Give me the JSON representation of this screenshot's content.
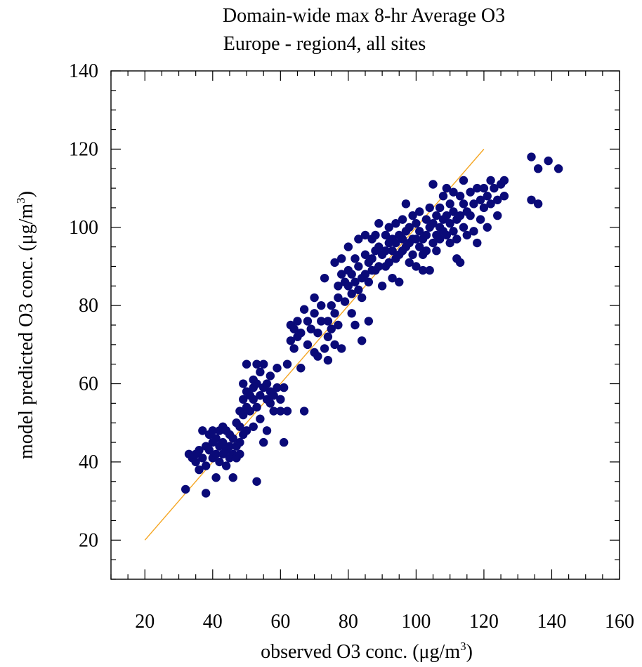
{
  "chart_data": {
    "type": "scatter",
    "title": "Domain-wide max 8-hr Average O3",
    "subtitle": "Europe - region4, all sites",
    "xlabel": "observed O3 conc. (μg/m³)",
    "xlabel_parts": {
      "main": "observed O3 conc. (μg/m",
      "sup": "3",
      "tail": ")"
    },
    "ylabel": "model predicted O3 conc. (μg/m³)",
    "ylabel_parts": {
      "main": "model predicted O3 conc. (μg/m",
      "sup": "3",
      "tail": ")"
    },
    "xlim": [
      10,
      160
    ],
    "ylim": [
      10,
      140
    ],
    "xticks": [
      20,
      40,
      60,
      80,
      100,
      120,
      140,
      160
    ],
    "yticks": [
      20,
      40,
      60,
      80,
      100,
      120,
      140
    ],
    "x_minor_step": 5,
    "y_minor_step": 5,
    "grid": false,
    "marker_color": "#0a0a78",
    "reference_line": {
      "x": [
        20,
        120
      ],
      "y": [
        20,
        120
      ],
      "color": "#f5a623"
    },
    "points": [
      [
        32,
        33
      ],
      [
        33,
        42
      ],
      [
        34,
        41
      ],
      [
        35,
        42
      ],
      [
        35,
        40
      ],
      [
        36,
        43
      ],
      [
        36,
        38
      ],
      [
        37,
        48
      ],
      [
        37,
        41
      ],
      [
        38,
        44
      ],
      [
        38,
        39
      ],
      [
        38,
        32
      ],
      [
        39,
        47
      ],
      [
        39,
        43
      ],
      [
        40,
        48
      ],
      [
        40,
        45
      ],
      [
        40,
        41
      ],
      [
        41,
        46
      ],
      [
        41,
        42
      ],
      [
        41,
        36
      ],
      [
        42,
        48
      ],
      [
        42,
        44
      ],
      [
        42,
        40
      ],
      [
        43,
        49
      ],
      [
        43,
        45
      ],
      [
        43,
        42
      ],
      [
        44,
        48
      ],
      [
        44,
        43
      ],
      [
        44,
        39
      ],
      [
        45,
        47
      ],
      [
        45,
        44
      ],
      [
        45,
        41
      ],
      [
        46,
        46
      ],
      [
        46,
        42
      ],
      [
        46,
        36
      ],
      [
        47,
        50
      ],
      [
        47,
        44
      ],
      [
        47,
        41
      ],
      [
        48,
        53
      ],
      [
        48,
        49
      ],
      [
        48,
        45
      ],
      [
        48,
        42
      ],
      [
        49,
        60
      ],
      [
        49,
        56
      ],
      [
        49,
        52
      ],
      [
        49,
        47
      ],
      [
        50,
        65
      ],
      [
        50,
        58
      ],
      [
        50,
        54
      ],
      [
        50,
        48
      ],
      [
        51,
        57
      ],
      [
        51,
        53
      ],
      [
        52,
        61
      ],
      [
        52,
        59
      ],
      [
        52,
        56
      ],
      [
        52,
        49
      ],
      [
        53,
        65
      ],
      [
        53,
        60
      ],
      [
        53,
        54
      ],
      [
        53,
        35
      ],
      [
        54,
        63
      ],
      [
        54,
        57
      ],
      [
        54,
        51
      ],
      [
        55,
        65
      ],
      [
        55,
        59
      ],
      [
        55,
        45
      ],
      [
        56,
        60
      ],
      [
        56,
        56
      ],
      [
        56,
        48
      ],
      [
        57,
        62
      ],
      [
        57,
        58
      ],
      [
        57,
        55
      ],
      [
        58,
        57
      ],
      [
        58,
        53
      ],
      [
        59,
        64
      ],
      [
        59,
        59
      ],
      [
        60,
        56
      ],
      [
        60,
        53
      ],
      [
        61,
        59
      ],
      [
        61,
        45
      ],
      [
        62,
        65
      ],
      [
        62,
        53
      ],
      [
        63,
        71
      ],
      [
        63,
        75
      ],
      [
        64,
        69
      ],
      [
        64,
        74
      ],
      [
        65,
        72
      ],
      [
        65,
        76
      ],
      [
        66,
        73
      ],
      [
        66,
        64
      ],
      [
        67,
        79
      ],
      [
        67,
        53
      ],
      [
        68,
        76
      ],
      [
        68,
        70
      ],
      [
        69,
        74
      ],
      [
        70,
        82
      ],
      [
        70,
        78
      ],
      [
        70,
        68
      ],
      [
        71,
        73
      ],
      [
        71,
        67
      ],
      [
        72,
        80
      ],
      [
        72,
        76
      ],
      [
        73,
        87
      ],
      [
        73,
        69
      ],
      [
        74,
        76
      ],
      [
        74,
        72
      ],
      [
        74,
        66
      ],
      [
        75,
        80
      ],
      [
        75,
        74
      ],
      [
        76,
        91
      ],
      [
        76,
        78
      ],
      [
        76,
        70
      ],
      [
        77,
        85
      ],
      [
        77,
        82
      ],
      [
        77,
        75
      ],
      [
        78,
        92
      ],
      [
        78,
        88
      ],
      [
        78,
        69
      ],
      [
        79,
        86
      ],
      [
        79,
        81
      ],
      [
        80,
        95
      ],
      [
        80,
        89
      ],
      [
        80,
        85
      ],
      [
        81,
        88
      ],
      [
        81,
        83
      ],
      [
        81,
        78
      ],
      [
        82,
        92
      ],
      [
        82,
        86
      ],
      [
        82,
        75
      ],
      [
        83,
        97
      ],
      [
        83,
        90
      ],
      [
        83,
        84
      ],
      [
        84,
        87
      ],
      [
        84,
        82
      ],
      [
        84,
        71
      ],
      [
        85,
        98
      ],
      [
        85,
        93
      ],
      [
        85,
        88
      ],
      [
        86,
        91
      ],
      [
        86,
        86
      ],
      [
        86,
        76
      ],
      [
        87,
        97
      ],
      [
        87,
        92
      ],
      [
        87,
        89
      ],
      [
        88,
        98
      ],
      [
        88,
        94
      ],
      [
        88,
        89
      ],
      [
        89,
        101
      ],
      [
        89,
        95
      ],
      [
        89,
        90
      ],
      [
        90,
        93
      ],
      [
        90,
        85
      ],
      [
        91,
        98
      ],
      [
        91,
        94
      ],
      [
        91,
        90
      ],
      [
        92,
        100
      ],
      [
        92,
        96
      ],
      [
        92,
        91
      ],
      [
        93,
        97
      ],
      [
        93,
        94
      ],
      [
        93,
        87
      ],
      [
        94,
        101
      ],
      [
        94,
        96
      ],
      [
        94,
        92
      ],
      [
        95,
        98
      ],
      [
        95,
        93
      ],
      [
        95,
        86
      ],
      [
        96,
        102
      ],
      [
        96,
        97
      ],
      [
        96,
        94
      ],
      [
        97,
        106
      ],
      [
        97,
        99
      ],
      [
        97,
        95
      ],
      [
        98,
        100
      ],
      [
        98,
        96
      ],
      [
        98,
        91
      ],
      [
        99,
        103
      ],
      [
        99,
        97
      ],
      [
        99,
        93
      ],
      [
        100,
        101
      ],
      [
        100,
        97
      ],
      [
        100,
        90
      ],
      [
        101,
        104
      ],
      [
        101,
        99
      ],
      [
        101,
        95
      ],
      [
        102,
        97
      ],
      [
        102,
        93
      ],
      [
        102,
        89
      ],
      [
        103,
        102
      ],
      [
        103,
        98
      ],
      [
        103,
        94
      ],
      [
        104,
        105
      ],
      [
        104,
        100
      ],
      [
        104,
        89
      ],
      [
        105,
        111
      ],
      [
        105,
        101
      ],
      [
        105,
        96
      ],
      [
        106,
        103
      ],
      [
        106,
        98
      ],
      [
        106,
        94
      ],
      [
        107,
        105
      ],
      [
        107,
        100
      ],
      [
        107,
        97
      ],
      [
        108,
        108
      ],
      [
        108,
        102
      ],
      [
        108,
        99
      ],
      [
        109,
        110
      ],
      [
        109,
        103
      ],
      [
        109,
        98
      ],
      [
        110,
        106
      ],
      [
        110,
        101
      ],
      [
        110,
        96
      ],
      [
        111,
        109
      ],
      [
        111,
        104
      ],
      [
        111,
        99
      ],
      [
        112,
        102
      ],
      [
        112,
        97
      ],
      [
        112,
        92
      ],
      [
        113,
        108
      ],
      [
        113,
        103
      ],
      [
        113,
        91
      ],
      [
        114,
        112
      ],
      [
        114,
        106
      ],
      [
        114,
        100
      ],
      [
        115,
        104
      ],
      [
        115,
        98
      ],
      [
        116,
        109
      ],
      [
        116,
        103
      ],
      [
        117,
        106
      ],
      [
        117,
        99
      ],
      [
        118,
        110
      ],
      [
        118,
        96
      ],
      [
        119,
        107
      ],
      [
        119,
        102
      ],
      [
        120,
        110
      ],
      [
        120,
        105
      ],
      [
        121,
        108
      ],
      [
        121,
        100
      ],
      [
        122,
        112
      ],
      [
        122,
        106
      ],
      [
        123,
        110
      ],
      [
        124,
        107
      ],
      [
        124,
        103
      ],
      [
        125,
        111
      ],
      [
        126,
        112
      ],
      [
        126,
        108
      ],
      [
        134,
        118
      ],
      [
        134,
        107
      ],
      [
        136,
        115
      ],
      [
        136,
        106
      ],
      [
        139,
        117
      ],
      [
        142,
        115
      ]
    ]
  }
}
